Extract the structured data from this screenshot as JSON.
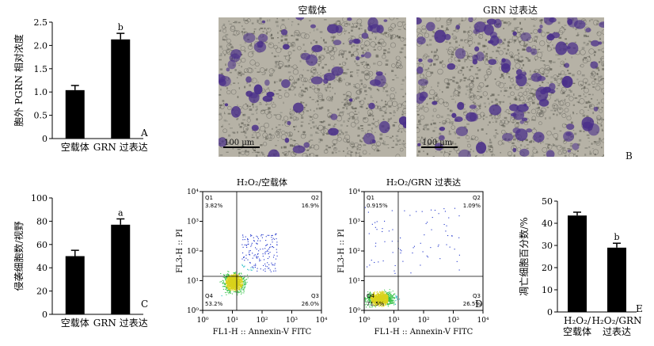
{
  "panels": {
    "A": {
      "letter": "A",
      "chart_data": {
        "type": "bar",
        "categories": [
          "空载体",
          "GRN 过表达"
        ],
        "values": [
          1.04,
          2.13
        ],
        "errors": [
          0.1,
          0.13
        ],
        "annotations": [
          "",
          "b"
        ],
        "ylabel": "胞外 PGRN 相对浓度",
        "ylim": [
          0,
          2.5
        ],
        "yticks": [
          "0",
          "0.5",
          "1.0",
          "1.5",
          "2.0",
          "2.5"
        ]
      }
    },
    "B": {
      "letter": "B",
      "images": [
        {
          "title": "空载体",
          "scale": "100 μm"
        },
        {
          "title": "GRN 过表达",
          "scale": "100 μm"
        }
      ]
    },
    "C": {
      "letter": "C",
      "chart_data": {
        "type": "bar",
        "categories": [
          "空载体",
          "GRN 过表达"
        ],
        "values": [
          50,
          77
        ],
        "errors": [
          5,
          5
        ],
        "annotations": [
          "",
          "a"
        ],
        "ylabel": "侵袭细胞数/视野",
        "ylim": [
          0,
          100
        ],
        "yticks": [
          "0",
          "20",
          "40",
          "60",
          "80",
          "100"
        ]
      }
    },
    "flow_left": {
      "letter": "",
      "chart_data": {
        "type": "scatter",
        "title": "H₂O₂/空载体",
        "xlabel": "FL1-H :: Annexin-V FITC",
        "ylabel": "FL3-H :: PI",
        "xticks": [
          "10⁰",
          "10¹",
          "10²",
          "10³",
          "10⁴"
        ],
        "yticks": [
          "10⁰",
          "10¹",
          "10²",
          "10³",
          "10⁴"
        ],
        "xlim": [
          1,
          10000
        ],
        "ylim": [
          1,
          10000
        ],
        "xscale": "log",
        "yscale": "log",
        "quadrants": [
          {
            "name": "Q1",
            "percent": "3.82%"
          },
          {
            "name": "Q2",
            "percent": "16.9%"
          },
          {
            "name": "Q3",
            "percent": "26.0%"
          },
          {
            "name": "Q4",
            "percent": "53.2%"
          }
        ]
      }
    },
    "D": {
      "letter": "D",
      "chart_data": {
        "type": "scatter",
        "title": "H₂O₂/GRN 过表达",
        "xlabel": "FL1-H :: Annexin-V FITC",
        "ylabel": "FL3-H :: PI",
        "xticks": [
          "10⁰",
          "10¹",
          "10²",
          "10³",
          "10⁴"
        ],
        "yticks": [
          "10⁰",
          "10¹",
          "10²",
          "10³",
          "10⁴"
        ],
        "xlim": [
          1,
          10000
        ],
        "ylim": [
          1,
          10000
        ],
        "xscale": "log",
        "yscale": "log",
        "quadrants": [
          {
            "name": "Q1",
            "percent": "0.915%"
          },
          {
            "name": "Q2",
            "percent": "1.09%"
          },
          {
            "name": "Q3",
            "percent": "26.5%"
          },
          {
            "name": "Q4",
            "percent": "71.5%"
          }
        ]
      }
    },
    "E": {
      "letter": "E",
      "chart_data": {
        "type": "bar",
        "categories": [
          "H₂O₂/\n空载体",
          "H₂O₂/GRN\n过表达"
        ],
        "values": [
          43.5,
          29
        ],
        "errors": [
          1.5,
          2
        ],
        "annotations": [
          "",
          "b"
        ],
        "ylabel": "凋亡细胞百分数/%",
        "ylim": [
          0,
          50
        ],
        "yticks": [
          "0",
          "10",
          "20",
          "30",
          "40",
          "50"
        ]
      }
    }
  },
  "colors": {
    "bar": "#000000",
    "micro_bg": "#b6b2a6",
    "cell": "#4a2f8a",
    "scatter": [
      "#1a2fc9",
      "#1bb8c2",
      "#38c24a",
      "#d9d21b"
    ]
  }
}
